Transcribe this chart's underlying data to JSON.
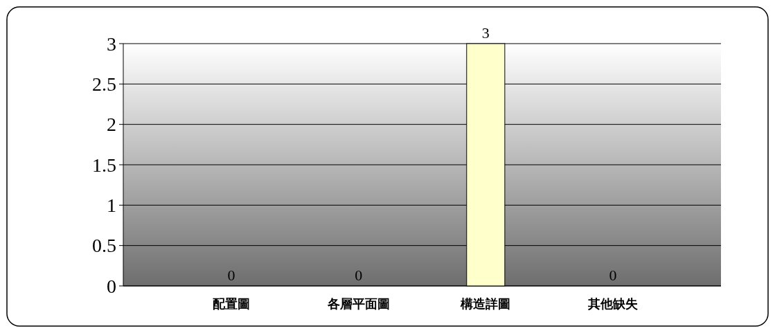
{
  "chart_data": {
    "type": "bar",
    "categories": [
      "配置圖",
      "各層平面圖",
      "構造詳圖",
      "其他缺失"
    ],
    "values": [
      0,
      0,
      3,
      0
    ],
    "color": "#ffffcc",
    "ylim": [
      0,
      3
    ],
    "yticks": [
      0,
      0.5,
      1,
      1.5,
      2,
      2.5,
      3
    ],
    "grid": "y",
    "data_labels": true
  }
}
